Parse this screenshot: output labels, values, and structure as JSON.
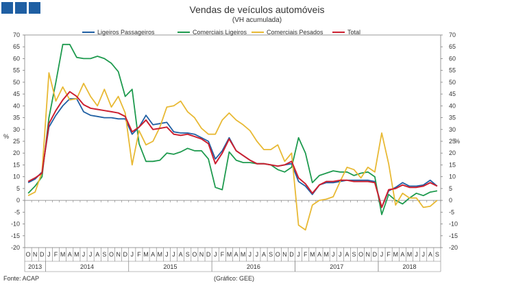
{
  "header": {
    "title": "Vendas de veículos automóveis",
    "subtitle": "(VH acumulada)"
  },
  "footer": {
    "source": "Fonte: ACAP",
    "graphic": "(Gráfico: GEE)"
  },
  "colors": {
    "logo": "#1f5fa3",
    "grid": "#d9d9d9",
    "axis": "#7f7f7f"
  },
  "chart_data": {
    "type": "line",
    "title": "Vendas de veículos automóveis",
    "subtitle": "(VH acumulada)",
    "ylabel_left": "%",
    "ylabel_right": "%",
    "ylim": [
      -20,
      70
    ],
    "yticks": [
      -20,
      -15,
      -10,
      -5,
      0,
      5,
      10,
      15,
      20,
      25,
      30,
      35,
      40,
      45,
      50,
      55,
      60,
      65,
      70
    ],
    "month_letters": [
      "O",
      "N",
      "D",
      "J",
      "F",
      "M",
      "A",
      "M",
      "J",
      "J",
      "A",
      "S",
      "O",
      "N",
      "D",
      "J",
      "F",
      "M",
      "A",
      "M",
      "J",
      "J",
      "A",
      "S",
      "O",
      "N",
      "D",
      "J",
      "F",
      "M",
      "A",
      "M",
      "J",
      "J",
      "A",
      "S",
      "O",
      "N",
      "D",
      "J",
      "F",
      "M",
      "A",
      "M",
      "J",
      "J",
      "A",
      "S",
      "O",
      "N",
      "D",
      "J",
      "F",
      "M",
      "A",
      "M",
      "J",
      "J",
      "A",
      "S"
    ],
    "years": [
      {
        "label": "2013",
        "start": 0,
        "count": 3
      },
      {
        "label": "2014",
        "start": 3,
        "count": 12
      },
      {
        "label": "2015",
        "start": 15,
        "count": 12
      },
      {
        "label": "2016",
        "start": 27,
        "count": 12
      },
      {
        "label": "2017",
        "start": 39,
        "count": 12
      },
      {
        "label": "2018",
        "start": 51,
        "count": 9
      }
    ],
    "legend_position": "top",
    "series": [
      {
        "name": "Ligeiros Passageiros",
        "color": "#1f5fa3",
        "values": [
          7.5,
          9,
          12,
          31,
          36,
          40,
          43,
          43,
          37.5,
          36,
          35.5,
          35,
          35,
          34.5,
          34.5,
          28,
          31,
          36,
          32,
          32.5,
          33,
          29,
          28.5,
          28.5,
          28,
          26.5,
          25,
          17.5,
          21,
          26.5,
          21,
          19,
          17,
          15.5,
          15.5,
          15,
          14.5,
          15,
          15.5,
          8,
          6,
          2.5,
          6.5,
          7.5,
          7.5,
          8,
          8.5,
          8.5,
          8.5,
          8.5,
          8,
          -3,
          4,
          5.5,
          7.5,
          6,
          6,
          6.5,
          8.5,
          6
        ]
      },
      {
        "name": "Comerciais Ligeiros",
        "color": "#1e9a4e",
        "values": [
          3,
          6,
          10,
          35,
          50,
          66,
          66,
          60.5,
          60,
          60,
          61,
          60,
          58,
          54.5,
          44,
          47,
          24,
          16.5,
          16.5,
          17,
          20,
          19.5,
          20.5,
          22,
          21,
          21,
          17.5,
          5.5,
          4.5,
          20.5,
          17,
          16,
          16,
          15.5,
          15.5,
          15,
          13,
          12,
          14,
          26.5,
          20,
          7.5,
          10.5,
          11.5,
          12.5,
          12,
          12,
          10.5,
          11.5,
          12,
          10,
          -6,
          2.5,
          0,
          -1.5,
          1,
          3,
          2,
          3.5,
          4
        ]
      },
      {
        "name": "Comerciais Pesados",
        "color": "#e8b934",
        "values": [
          2,
          3.5,
          12,
          54,
          42,
          48,
          42.5,
          43,
          49.5,
          44,
          40,
          47,
          39.5,
          44,
          37,
          15,
          29.5,
          23.5,
          25,
          31,
          39.5,
          40,
          42,
          37.5,
          35,
          30.5,
          28,
          28,
          34,
          37,
          34,
          32,
          29.5,
          25,
          21.5,
          21.5,
          23.5,
          16.5,
          20,
          -10.5,
          -12.5,
          -2,
          0,
          0.5,
          1.5,
          8,
          14,
          13,
          9.5,
          14,
          12,
          28.5,
          15.5,
          -2,
          3,
          1,
          1,
          -3,
          -2.5,
          0
        ]
      },
      {
        "name": "Total",
        "color": "#cc2030",
        "values": [
          8,
          9.5,
          11.5,
          32.5,
          38,
          42.5,
          46,
          44,
          40.5,
          39,
          38.5,
          38,
          37.5,
          37,
          35.5,
          29,
          31,
          34,
          30,
          30.5,
          31,
          28,
          27.5,
          28,
          27,
          26,
          24,
          15.5,
          20,
          26,
          21,
          19,
          17,
          15.5,
          15.5,
          15,
          14.5,
          15,
          16.5,
          9.5,
          7,
          3,
          6.5,
          8,
          8,
          8.5,
          8.5,
          8,
          8,
          8,
          7.5,
          -3,
          4.5,
          5,
          6.5,
          5.5,
          5.5,
          6,
          7.5,
          6
        ]
      }
    ]
  }
}
